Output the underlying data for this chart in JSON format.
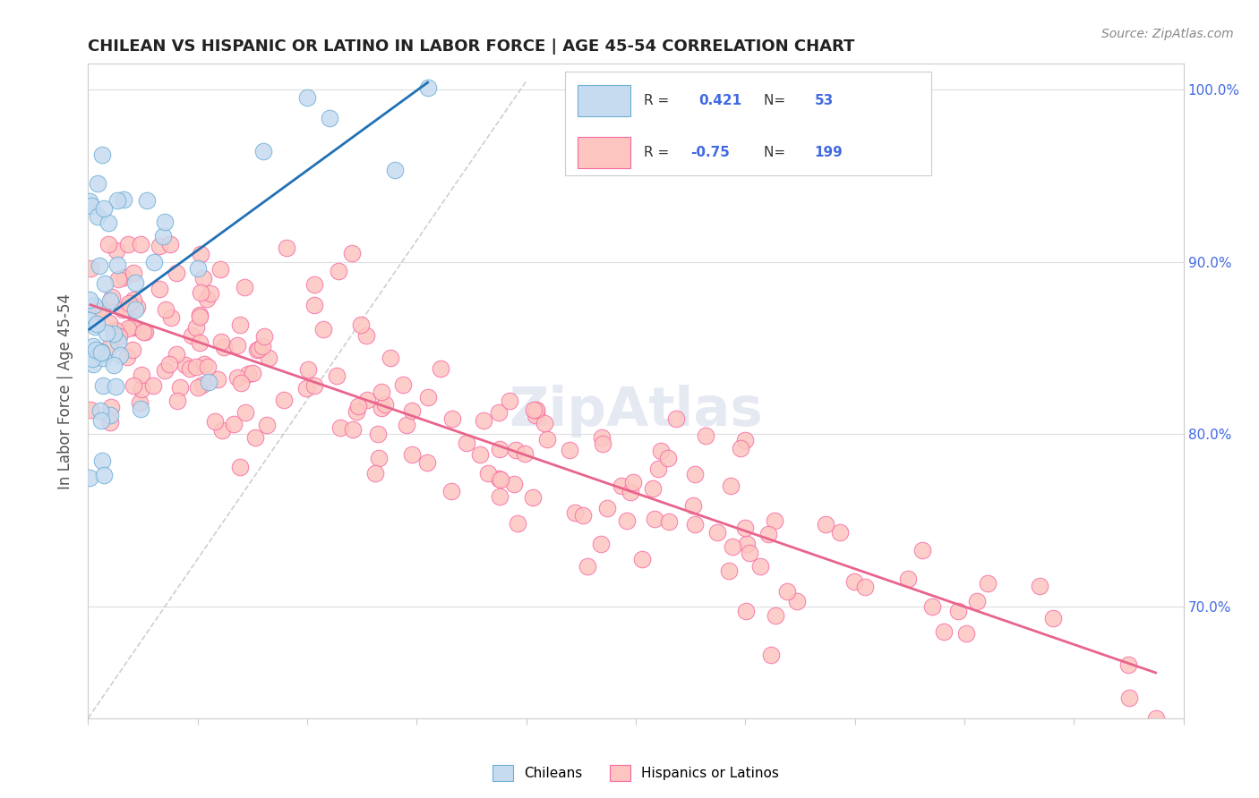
{
  "title": "CHILEAN VS HISPANIC OR LATINO IN LABOR FORCE | AGE 45-54 CORRELATION CHART",
  "source": "Source: ZipAtlas.com",
  "ylabel": "In Labor Force | Age 45-54",
  "xmin": 0.0,
  "xmax": 1.0,
  "ymin": 0.635,
  "ymax": 1.015,
  "blue_R": 0.421,
  "blue_N": 53,
  "pink_R": -0.75,
  "pink_N": 199,
  "blue_edge_color": "#6baed6",
  "blue_face_color": "#c6dbef",
  "pink_edge_color": "#f768a1",
  "pink_face_color": "#fcc5c0",
  "blue_line_color": "#2171b5",
  "pink_line_color": "#e8648c",
  "legend_blue_face": "#c6dbef",
  "legend_pink_face": "#fcc5c0",
  "legend_label_blue": "Chileans",
  "legend_label_pink": "Hispanics or Latinos",
  "background_color": "#ffffff",
  "grid_color": "#dddddd",
  "right_tick_color": "#4169e1",
  "watermark_color": "#d0d8e8"
}
